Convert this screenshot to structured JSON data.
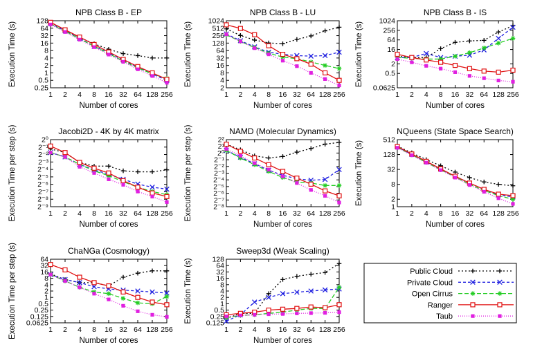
{
  "colors": {
    "Public Cloud": "#000000",
    "Private Cloud": "#1f1fe0",
    "Open Cirrus": "#22cc22",
    "Ranger": "#e01010",
    "Taub": "#e020e0"
  },
  "legend": {
    "placement": "panel-9 (bottom-right)",
    "entries": [
      "Public Cloud",
      "Private Cloud",
      "Open Cirrus",
      "Ranger",
      "Taub"
    ]
  },
  "chart_data": [
    {
      "type": "line",
      "title": "NPB Class B - EP",
      "xlabel": "Number of cores",
      "ylabel": "Execution Time (s)",
      "log_y": true,
      "x": [
        1,
        2,
        4,
        8,
        16,
        32,
        64,
        128,
        256
      ],
      "x_ticks": [
        "1",
        "2",
        "4",
        "8",
        "16",
        "32",
        "64",
        "128",
        "256"
      ],
      "ylim": [
        0.25,
        128
      ],
      "y_ticks": [
        {
          "v": 0.25,
          "l": "0.25"
        },
        {
          "v": 0.5,
          "l": "0.5"
        },
        {
          "v": 1,
          "l": "1"
        },
        {
          "v": 2,
          "l": "2"
        },
        {
          "v": 4,
          "l": "4"
        },
        {
          "v": 8,
          "l": "8"
        },
        {
          "v": 16,
          "l": "16"
        },
        {
          "v": 32,
          "l": "32"
        },
        {
          "v": 64,
          "l": "64"
        },
        {
          "v": 128,
          "l": "128"
        }
      ],
      "series": [
        {
          "name": "Public Cloud",
          "values": [
            110,
            55,
            27,
            15,
            9,
            6,
            5,
            4,
            4
          ]
        },
        {
          "name": "Private Cloud",
          "values": [
            100,
            50,
            25,
            12,
            6.5,
            3.3,
            1.7,
            0.9,
            0.5
          ]
        },
        {
          "name": "Open Cirrus",
          "values": [
            95,
            48,
            24,
            12,
            6,
            3,
            1.6,
            0.9,
            0.6
          ]
        },
        {
          "name": "Ranger",
          "values": [
            110,
            55,
            28,
            14,
            7,
            3.5,
            1.8,
            1,
            0.55
          ]
        },
        {
          "name": "Taub",
          "values": [
            90,
            45,
            22,
            11,
            5.5,
            2.8,
            1.4,
            0.75,
            0.4
          ]
        }
      ]
    },
    {
      "type": "line",
      "title": "NPB Class B - LU",
      "xlabel": "Number of cores",
      "ylabel": "Execution Time (s)",
      "log_y": true,
      "x": [
        1,
        2,
        4,
        8,
        16,
        32,
        64,
        128,
        256
      ],
      "x_ticks": [
        "1",
        "2",
        "4",
        "8",
        "16",
        "32",
        "64",
        "128",
        "256"
      ],
      "ylim": [
        2,
        1024
      ],
      "y_ticks": [
        {
          "v": 2,
          "l": "2"
        },
        {
          "v": 4,
          "l": "4"
        },
        {
          "v": 8,
          "l": "8"
        },
        {
          "v": 16,
          "l": "16"
        },
        {
          "v": 32,
          "l": "32"
        },
        {
          "v": 64,
          "l": "64"
        },
        {
          "v": 128,
          "l": "128"
        },
        {
          "v": 256,
          "l": "256"
        },
        {
          "v": 512,
          "l": "512"
        },
        {
          "v": 1024,
          "l": "1024"
        }
      ],
      "series": [
        {
          "name": "Public Cloud",
          "values": [
            480,
            260,
            170,
            130,
            120,
            180,
            250,
            400,
            560
          ]
        },
        {
          "name": "Private Cloud",
          "values": [
            300,
            160,
            90,
            55,
            45,
            40,
            38,
            40,
            55
          ]
        },
        {
          "name": "Open Cirrus",
          "values": [
            280,
            150,
            85,
            50,
            35,
            30,
            22,
            16,
            12
          ]
        },
        {
          "name": "Ranger",
          "values": [
            700,
            500,
            280,
            100,
            45,
            30,
            18,
            8,
            4
          ]
        },
        {
          "name": "Taub",
          "values": [
            290,
            150,
            80,
            45,
            25,
            15,
            8,
            4.5,
            2.5
          ]
        }
      ]
    },
    {
      "type": "line",
      "title": "NPB Class B - IS",
      "xlabel": "Number of cores",
      "ylabel": "Execution Time (s)",
      "log_y": true,
      "x": [
        1,
        2,
        4,
        8,
        16,
        32,
        64,
        128,
        256
      ],
      "x_ticks": [
        "1",
        "2",
        "4",
        "8",
        "16",
        "32",
        "64",
        "128",
        "256"
      ],
      "ylim": [
        0.0625,
        1024
      ],
      "y_ticks": [
        {
          "v": 0.0625,
          "l": "0.0625"
        },
        {
          "v": 0.5,
          "l": "0.5"
        },
        {
          "v": 2,
          "l": "2"
        },
        {
          "v": 16,
          "l": "16"
        },
        {
          "v": 64,
          "l": "64"
        },
        {
          "v": 256,
          "l": "256"
        },
        {
          "v": 1024,
          "l": "1024"
        }
      ],
      "series": [
        {
          "name": "Public Cloud",
          "values": [
            6,
            5,
            5,
            18,
            45,
            55,
            60,
            200,
            500
          ]
        },
        {
          "name": "Private Cloud",
          "values": [
            5,
            5,
            9,
            5,
            6,
            7,
            15,
            80,
            400
          ]
        },
        {
          "name": "Open Cirrus",
          "values": [
            5,
            4.5,
            4,
            4,
            6,
            10,
            20,
            40,
            80
          ]
        },
        {
          "name": "Ranger",
          "values": [
            8,
            5,
            3.5,
            2.5,
            1.6,
            1,
            0.7,
            0.6,
            0.8
          ]
        },
        {
          "name": "Taub",
          "values": [
            4,
            2.5,
            1.5,
            1,
            0.6,
            0.35,
            0.25,
            0.18,
            0.15
          ]
        }
      ]
    },
    {
      "type": "line",
      "title": "Jacobi2D - 4K by 4K matrix",
      "xlabel": "Number of cores",
      "ylabel": "Execution Time per step (s)",
      "log_y": true,
      "x": [
        1,
        2,
        4,
        8,
        16,
        32,
        64,
        128,
        256
      ],
      "x_ticks": [
        "1",
        "2",
        "4",
        "8",
        "16",
        "32",
        "64",
        "128",
        "256"
      ],
      "ylim": [
        0.001953125,
        1
      ],
      "y_ticks": [
        {
          "v": 1,
          "l": "2⁰"
        },
        {
          "v": 0.5,
          "l": "2⁻¹"
        },
        {
          "v": 0.25,
          "l": "2⁻²"
        },
        {
          "v": 0.125,
          "l": "2⁻³"
        },
        {
          "v": 0.0625,
          "l": "2⁻⁴"
        },
        {
          "v": 0.03125,
          "l": "2⁻⁵"
        },
        {
          "v": 0.015625,
          "l": "2⁻⁶"
        },
        {
          "v": 0.0078125,
          "l": "2⁻⁷"
        },
        {
          "v": 0.00390625,
          "l": "2⁻⁸"
        },
        {
          "v": 0.001953125,
          "l": "2⁻⁹"
        }
      ],
      "series": [
        {
          "name": "Public Cloud",
          "values": [
            0.42,
            0.3,
            0.12,
            0.085,
            0.085,
            0.055,
            0.05,
            0.05,
            0.06
          ]
        },
        {
          "name": "Private Cloud",
          "values": [
            0.3,
            0.2,
            0.1,
            0.06,
            0.04,
            0.025,
            0.016,
            0.012,
            0.01
          ]
        },
        {
          "name": "Open Cirrus",
          "values": [
            0.3,
            0.2,
            0.1,
            0.055,
            0.035,
            0.02,
            0.012,
            0.008,
            0.006
          ]
        },
        {
          "name": "Ranger",
          "values": [
            0.55,
            0.3,
            0.12,
            0.07,
            0.045,
            0.022,
            0.012,
            0.007,
            0.005
          ]
        },
        {
          "name": "Taub",
          "values": [
            0.3,
            0.2,
            0.08,
            0.045,
            0.025,
            0.015,
            0.008,
            0.005,
            0.003
          ]
        }
      ]
    },
    {
      "type": "line",
      "title": "NAMD (Molecular Dynamics)",
      "xlabel": "Number of cores",
      "ylabel": "Execution Time per step (s)",
      "log_y": true,
      "x": [
        1,
        2,
        4,
        8,
        16,
        32,
        64,
        128,
        256
      ],
      "x_ticks": [
        "1",
        "2",
        "4",
        "8",
        "16",
        "32",
        "64",
        "128",
        "256"
      ],
      "ylim": [
        0.0039,
        4
      ],
      "y_ticks": [
        {
          "v": 4,
          "l": "2²"
        },
        {
          "v": 2,
          "l": "2¹"
        },
        {
          "v": 1,
          "l": "2⁰"
        },
        {
          "v": 0.5,
          "l": "2⁻¹"
        },
        {
          "v": 0.25,
          "l": "2⁻²"
        },
        {
          "v": 0.125,
          "l": "2⁻³"
        },
        {
          "v": 0.0625,
          "l": "2⁻⁴"
        },
        {
          "v": 0.03125,
          "l": "2⁻⁵"
        },
        {
          "v": 0.015625,
          "l": "2⁻⁶"
        },
        {
          "v": 0.0078125,
          "l": "2⁻⁷"
        },
        {
          "v": 0.00390625,
          "l": "2⁻⁸"
        }
      ],
      "series": [
        {
          "name": "Public Cloud",
          "values": [
            2.5,
            1.4,
            0.75,
            0.6,
            0.7,
            1.1,
            1.6,
            2.5,
            3
          ]
        },
        {
          "name": "Private Cloud",
          "values": [
            1.3,
            0.65,
            0.33,
            0.17,
            0.1,
            0.07,
            0.06,
            0.065,
            0.18
          ]
        },
        {
          "name": "Open Cirrus",
          "values": [
            1.3,
            0.6,
            0.3,
            0.15,
            0.08,
            0.05,
            0.045,
            0.035,
            0.035
          ]
        },
        {
          "name": "Ranger",
          "values": [
            2.5,
            1.2,
            0.6,
            0.3,
            0.15,
            0.075,
            0.04,
            0.02,
            0.012
          ]
        },
        {
          "name": "Taub",
          "values": [
            1.5,
            0.75,
            0.35,
            0.18,
            0.09,
            0.045,
            0.022,
            0.012,
            0.006
          ]
        }
      ]
    },
    {
      "type": "line",
      "title": "NQueens (State Space Search)",
      "xlabel": "Number of cores",
      "ylabel": "Execution Time (s)",
      "log_y": true,
      "x": [
        1,
        2,
        4,
        8,
        16,
        32,
        64,
        128,
        256
      ],
      "x_ticks": [
        "1",
        "2",
        "4",
        "8",
        "16",
        "32",
        "64",
        "128",
        "256"
      ],
      "ylim": [
        1,
        512
      ],
      "y_ticks": [
        {
          "v": 1,
          "l": "1"
        },
        {
          "v": 2,
          "l": "2"
        },
        {
          "v": 8,
          "l": "8"
        },
        {
          "v": 32,
          "l": "32"
        },
        {
          "v": 128,
          "l": "128"
        },
        {
          "v": 512,
          "l": "512"
        }
      ],
      "series": [
        {
          "name": "Public Cloud",
          "values": [
            280,
            150,
            80,
            45,
            25,
            15,
            10,
            8,
            7
          ]
        },
        {
          "name": "Private Cloud",
          "values": [
            260,
            130,
            65,
            33,
            17,
            9,
            5,
            3,
            2.5
          ]
        },
        {
          "name": "Open Cirrus",
          "values": [
            250,
            125,
            62,
            31,
            16,
            8,
            4.5,
            2.8,
            2
          ]
        },
        {
          "name": "Ranger",
          "values": [
            270,
            135,
            68,
            34,
            17,
            9,
            5,
            3.2,
            2.8
          ]
        },
        {
          "name": "Taub",
          "values": [
            240,
            120,
            60,
            30,
            15,
            7.5,
            4,
            2.2,
            1.3
          ]
        }
      ]
    },
    {
      "type": "line",
      "title": "ChaNGa (Cosmology)",
      "xlabel": "Number of cores",
      "ylabel": "Execution Time per step (s)",
      "log_y": true,
      "x": [
        1,
        2,
        4,
        8,
        16,
        32,
        64,
        128,
        256
      ],
      "x_ticks": [
        "1",
        "2",
        "4",
        "8",
        "16",
        "32",
        "64",
        "128",
        "256"
      ],
      "ylim": [
        0.0625,
        64
      ],
      "y_ticks": [
        {
          "v": 0.0625,
          "l": "0.0625"
        },
        {
          "v": 0.125,
          "l": "0.125"
        },
        {
          "v": 0.25,
          "l": "0.25"
        },
        {
          "v": 0.5,
          "l": "0.5"
        },
        {
          "v": 1,
          "l": "1"
        },
        {
          "v": 2,
          "l": "2"
        },
        {
          "v": 4,
          "l": "4"
        },
        {
          "v": 8,
          "l": "8"
        },
        {
          "v": 16,
          "l": "16"
        },
        {
          "v": 32,
          "l": "32"
        },
        {
          "v": 64,
          "l": "64"
        }
      ],
      "series": [
        {
          "name": "Public Cloud",
          "values": [
            13,
            7,
            5,
            5,
            3.5,
            9,
            14,
            18,
            18
          ]
        },
        {
          "name": "Private Cloud",
          "values": [
            12,
            7,
            5,
            3.2,
            2.5,
            2.2,
            2,
            1.8,
            1.6
          ]
        },
        {
          "name": "Open Cirrus",
          "values": [
            12,
            6,
            3,
            1.8,
            1.5,
            0.9,
            0.55,
            0.5,
            1.1
          ]
        },
        {
          "name": "Ranger",
          "values": [
            36,
            20,
            9,
            5,
            3.5,
            1.8,
            1,
            0.6,
            0.45
          ]
        },
        {
          "name": "Taub",
          "values": [
            12,
            6,
            3,
            1.5,
            0.8,
            0.4,
            0.22,
            0.15,
            0.12
          ]
        }
      ]
    },
    {
      "type": "line",
      "title": "Sweep3d (Weak Scaling)",
      "xlabel": "Number of cores",
      "ylabel": "Execution Time (s)",
      "log_y": true,
      "x": [
        1,
        2,
        4,
        8,
        16,
        32,
        64,
        128,
        256
      ],
      "x_ticks": [
        "1",
        "2",
        "4",
        "8",
        "16",
        "32",
        "64",
        "128",
        "256"
      ],
      "ylim": [
        0.125,
        128
      ],
      "y_ticks": [
        {
          "v": 0.125,
          "l": "0.125"
        },
        {
          "v": 0.25,
          "l": "0.25"
        },
        {
          "v": 0.5,
          "l": "0.5"
        },
        {
          "v": 1,
          "l": "1"
        },
        {
          "v": 2,
          "l": "2"
        },
        {
          "v": 4,
          "l": "4"
        },
        {
          "v": 8,
          "l": "8"
        },
        {
          "v": 16,
          "l": "16"
        },
        {
          "v": 32,
          "l": "32"
        },
        {
          "v": 64,
          "l": "64"
        },
        {
          "v": 128,
          "l": "128"
        }
      ],
      "series": [
        {
          "name": "Public Cloud",
          "values": [
            0.2,
            0.35,
            0.35,
            3,
            14,
            20,
            25,
            30,
            80
          ]
        },
        {
          "name": "Private Cloud",
          "values": [
            0.15,
            0.3,
            1.2,
            2,
            3,
            3.5,
            4,
            4.5,
            5
          ]
        },
        {
          "name": "Open Cirrus",
          "values": [
            0.22,
            0.28,
            0.3,
            0.35,
            0.4,
            0.5,
            0.6,
            0.6,
            6
          ]
        },
        {
          "name": "Ranger",
          "values": [
            0.3,
            0.35,
            0.4,
            0.5,
            0.55,
            0.6,
            0.7,
            0.65,
            0.9
          ]
        },
        {
          "name": "Taub",
          "values": [
            0.25,
            0.28,
            0.3,
            0.32,
            0.33,
            0.35,
            0.36,
            0.37,
            0.4
          ]
        }
      ]
    }
  ]
}
